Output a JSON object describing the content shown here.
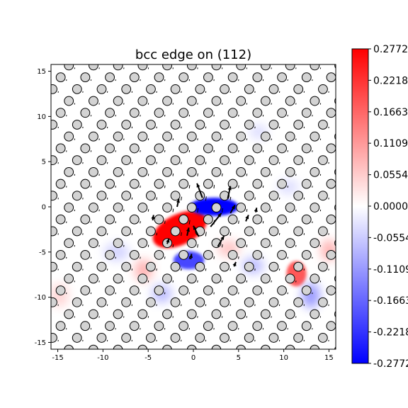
{
  "chart_data": {
    "type": "heatmap",
    "title": "bcc edge on (112)",
    "xlabel": "",
    "ylabel": "",
    "xlim": [
      -15.75,
      15.75
    ],
    "ylim": [
      -15.75,
      15.75
    ],
    "x_ticks": [
      -15,
      -10,
      -5,
      0,
      5,
      10,
      15
    ],
    "y_ticks": [
      -15,
      -10,
      -5,
      0,
      5,
      10,
      15
    ],
    "grid": false,
    "colormap": "bwr",
    "colorbar": {
      "min": -0.2772,
      "max": 0.2772,
      "tick_values": [
        0.2772,
        0.2218,
        0.1663,
        0.1109,
        0.0554,
        0.0,
        -0.0554,
        -0.1109,
        -0.1663,
        -0.2218,
        -0.2772
      ],
      "tick_labels": [
        "0.2772",
        "0.2218",
        "0.1663",
        "0.1109",
        "0.0554",
        "0.0000",
        "-0.0554",
        "-0.1109",
        "-0.1663",
        "-0.2218",
        "-0.2772"
      ]
    },
    "atom_lattice": {
      "row_spacing": 1.31,
      "column_spacing": 2.72,
      "row_offset_step": 0.907,
      "x_range": [
        -16.5,
        16.5
      ],
      "y_range": [
        -15.8,
        15.8
      ],
      "core": [
        0.5,
        -0.6
      ]
    },
    "intensity_blobs": [
      {
        "x": -1.5,
        "y": -2.5,
        "value": 0.2772,
        "rx": 3.2,
        "ry": 1.7,
        "angle": -25
      },
      {
        "x": 2.3,
        "y": 0.0,
        "value": -0.2772,
        "rx": 2.7,
        "ry": 1.0,
        "angle": 0
      },
      {
        "x": -0.5,
        "y": -5.9,
        "value": -0.2,
        "rx": 1.7,
        "ry": 1.0,
        "angle": 0
      },
      {
        "x": 11.4,
        "y": -7.4,
        "value": 0.18,
        "rx": 1.1,
        "ry": 1.4,
        "angle": 0
      },
      {
        "x": 13.0,
        "y": -9.8,
        "value": -0.12,
        "rx": 1.0,
        "ry": 1.4,
        "angle": 0
      },
      {
        "x": -5.5,
        "y": -7.0,
        "value": 0.09,
        "rx": 1.0,
        "ry": 1.2,
        "angle": 0
      },
      {
        "x": -3.5,
        "y": -9.6,
        "value": -0.08,
        "rx": 1.1,
        "ry": 1.0,
        "angle": 0
      },
      {
        "x": 6.6,
        "y": -6.5,
        "value": -0.08,
        "rx": 1.2,
        "ry": 0.9,
        "angle": 0
      },
      {
        "x": 3.9,
        "y": -4.6,
        "value": 0.07,
        "rx": 1.2,
        "ry": 0.9,
        "angle": 0
      },
      {
        "x": -8.5,
        "y": -5.0,
        "value": -0.05,
        "rx": 1.4,
        "ry": 1.0,
        "angle": 0
      },
      {
        "x": -14.8,
        "y": -9.8,
        "value": 0.05,
        "rx": 1.0,
        "ry": 1.3,
        "angle": 0
      },
      {
        "x": 15.0,
        "y": -4.8,
        "value": 0.09,
        "rx": 0.9,
        "ry": 1.2,
        "angle": 0
      },
      {
        "x": 7.2,
        "y": 8.3,
        "value": -0.04,
        "rx": 1.0,
        "ry": 0.8,
        "angle": 0
      },
      {
        "x": 10.5,
        "y": 2.2,
        "value": -0.04,
        "rx": 1.2,
        "ry": 0.8,
        "angle": 0
      }
    ],
    "displacement_arrows": [
      {
        "x": 1.0,
        "y": 1.0,
        "dx": -0.6,
        "dy": 1.6
      },
      {
        "x": 3.8,
        "y": 0.9,
        "dx": 0.3,
        "dy": 1.4
      },
      {
        "x": 1.9,
        "y": -2.2,
        "dx": 1.2,
        "dy": 1.5
      },
      {
        "x": 4.1,
        "y": -0.7,
        "dx": 0.5,
        "dy": 0.9
      },
      {
        "x": 0.6,
        "y": -3.3,
        "dx": -0.6,
        "dy": 1.2
      },
      {
        "x": 2.7,
        "y": -4.4,
        "dx": 0.7,
        "dy": 1.2
      },
      {
        "x": -1.8,
        "y": 0.0,
        "dx": 0.2,
        "dy": 0.9
      },
      {
        "x": -0.7,
        "y": -3.2,
        "dx": 0.2,
        "dy": 0.9
      },
      {
        "x": 5.8,
        "y": -1.6,
        "dx": 0.3,
        "dy": 0.7
      },
      {
        "x": -2.9,
        "y": -4.1,
        "dx": 0.2,
        "dy": 0.6
      },
      {
        "x": -4.5,
        "y": -1.5,
        "dx": 0.1,
        "dy": 0.6
      },
      {
        "x": 6.9,
        "y": -0.6,
        "dx": 0.1,
        "dy": 0.5
      },
      {
        "x": -0.3,
        "y": -5.8,
        "dx": 0.1,
        "dy": 0.6
      },
      {
        "x": 4.5,
        "y": -6.6,
        "dx": 0.2,
        "dy": 0.5
      }
    ]
  }
}
